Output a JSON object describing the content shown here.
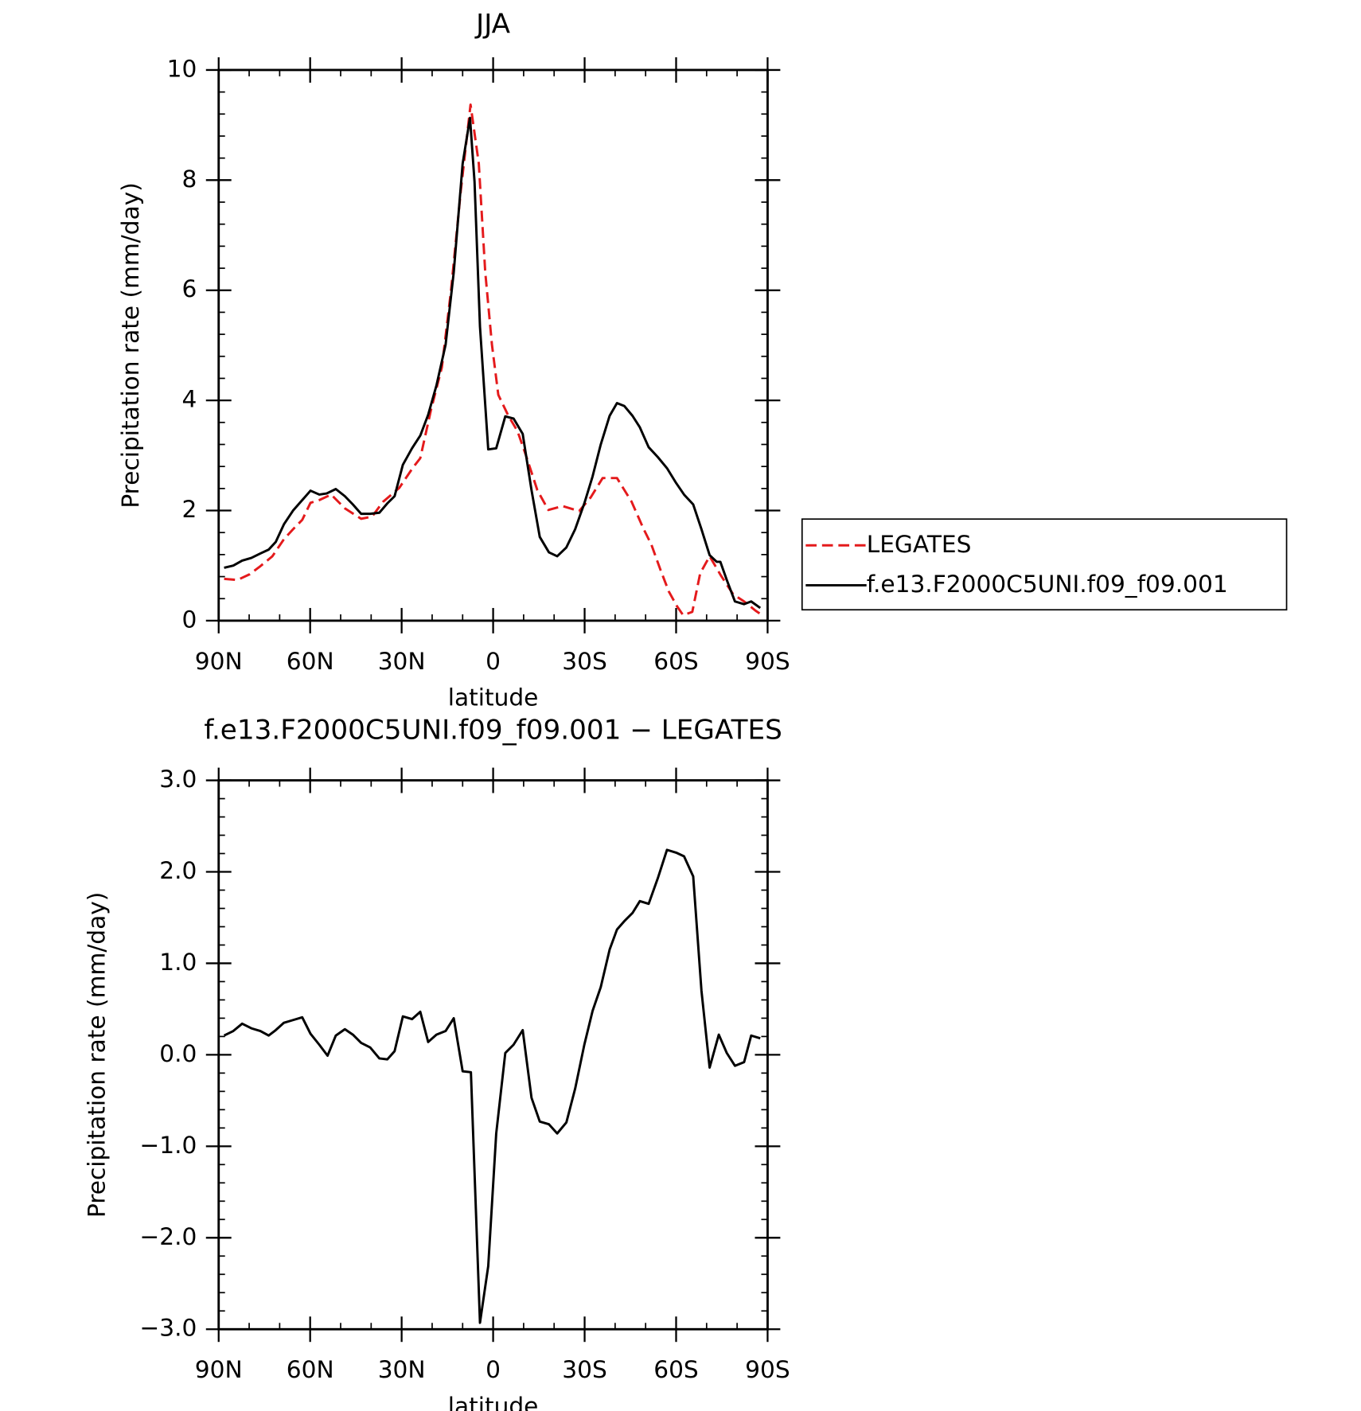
{
  "chart_data": [
    {
      "type": "line",
      "title": "JJA",
      "xlabel": "latitude",
      "ylabel": "Precipitation rate (mm/day)",
      "xlim": [
        90,
        -90
      ],
      "xticks": [
        {
          "value": 90,
          "label": "90N"
        },
        {
          "value": 60,
          "label": "60N"
        },
        {
          "value": 30,
          "label": "30N"
        },
        0,
        {
          "value": -30,
          "label": "30S"
        },
        {
          "value": -60,
          "label": "60S"
        },
        {
          "value": -90,
          "label": "90S"
        }
      ],
      "ylim": [
        0,
        10
      ],
      "yticks": [
        0,
        2,
        4,
        6,
        8,
        10
      ],
      "legend": "outside right",
      "series": [
        {
          "name": "LEGATES",
          "color": "#e41a1c",
          "style": "dashed",
          "x": [
            88.2,
            83.8,
            79.9,
            76.3,
            72.4,
            68.6,
            65.6,
            62.6,
            59.9,
            57.0,
            53.1,
            48.6,
            43.3,
            39.7,
            36.1,
            30.8,
            26.3,
            23.9,
            20.4,
            16.8,
            13.8,
            10.6,
            7.4,
            4.7,
            2.6,
            0.4,
            -1.7,
            -5.0,
            -8.0,
            -10.9,
            -14.5,
            -18.1,
            -22.8,
            -28.2,
            -32.0,
            -35.9,
            -40.6,
            -45.4,
            -49.2,
            -51.9,
            -54.9,
            -57.6,
            -60.3,
            -62.3,
            -65.3,
            -67.9,
            -71.0,
            -74.8,
            -78.7,
            -82.3,
            -86.1,
            -88.2
          ],
          "values": [
            0.76,
            0.74,
            0.84,
            0.99,
            1.17,
            1.48,
            1.66,
            1.83,
            2.14,
            2.19,
            2.29,
            2.04,
            1.85,
            1.89,
            2.16,
            2.41,
            2.78,
            2.95,
            3.82,
            4.6,
            6.0,
            7.81,
            9.37,
            8.3,
            6.33,
            5.01,
            4.1,
            3.72,
            3.44,
            2.98,
            2.37,
            2.01,
            2.08,
            1.99,
            2.24,
            2.59,
            2.59,
            2.16,
            1.68,
            1.38,
            0.92,
            0.53,
            0.26,
            0.1,
            0.16,
            0.86,
            1.17,
            0.81,
            0.48,
            0.35,
            0.18,
            0.1
          ]
        },
        {
          "name": "f.e13.F2000C5UNI.f09_f09.001",
          "color": "#000000",
          "style": "solid",
          "x": [
            88.2,
            85.2,
            82.3,
            79.3,
            76.3,
            73.6,
            71.3,
            68.6,
            65.6,
            62.6,
            59.9,
            57.0,
            54.6,
            51.6,
            48.6,
            46.0,
            43.3,
            40.3,
            37.3,
            34.7,
            32.3,
            29.6,
            26.6,
            23.9,
            21.3,
            18.6,
            15.6,
            12.9,
            10.0,
            7.6,
            6.1,
            4.3,
            1.6,
            -1.0,
            -4.0,
            -6.7,
            -9.7,
            -12.6,
            -15.3,
            -18.3,
            -21.0,
            -24.0,
            -26.9,
            -29.9,
            -32.6,
            -35.3,
            -38.2,
            -40.6,
            -43.0,
            -45.7,
            -48.1,
            -51.0,
            -54.0,
            -57.0,
            -60.0,
            -62.6,
            -65.6,
            -68.3,
            -71.0,
            -73.3,
            -74.5,
            -76.6,
            -79.3,
            -82.3,
            -84.6,
            -87.6
          ],
          "values": [
            0.96,
            1.0,
            1.09,
            1.14,
            1.22,
            1.29,
            1.43,
            1.75,
            2.0,
            2.19,
            2.36,
            2.29,
            2.31,
            2.39,
            2.26,
            2.11,
            1.94,
            1.94,
            1.96,
            2.13,
            2.26,
            2.83,
            3.13,
            3.36,
            3.74,
            4.27,
            5.01,
            6.33,
            8.3,
            9.13,
            7.97,
            5.34,
            3.11,
            3.13,
            3.71,
            3.67,
            3.39,
            2.37,
            1.52,
            1.24,
            1.17,
            1.33,
            1.66,
            2.13,
            2.62,
            3.2,
            3.72,
            3.95,
            3.9,
            3.72,
            3.51,
            3.15,
            2.97,
            2.77,
            2.5,
            2.29,
            2.11,
            1.66,
            1.19,
            1.07,
            1.07,
            0.74,
            0.35,
            0.3,
            0.35,
            0.23
          ]
        }
      ]
    },
    {
      "type": "line",
      "title": "f.e13.F2000C5UNI.f09_f09.001 − LEGATES",
      "xlabel": "latitude",
      "ylabel": "Precipitation rate (mm/day)",
      "xlim": [
        90,
        -90
      ],
      "xticks": [
        {
          "value": 90,
          "label": "90N"
        },
        {
          "value": 60,
          "label": "60N"
        },
        {
          "value": 30,
          "label": "30N"
        },
        0,
        {
          "value": -30,
          "label": "30S"
        },
        {
          "value": -60,
          "label": "60S"
        },
        {
          "value": -90,
          "label": "90S"
        }
      ],
      "ylim": [
        -3,
        3
      ],
      "yticks": [
        {
          "value": -3,
          "label": "−3.0"
        },
        {
          "value": -2,
          "label": "−2.0"
        },
        {
          "value": -1,
          "label": "−1.0"
        },
        {
          "value": 0,
          "label": "0.0"
        },
        {
          "value": 1,
          "label": "1.0"
        },
        {
          "value": 2,
          "label": "2.0"
        },
        {
          "value": 3,
          "label": "3.0"
        }
      ],
      "series": [
        {
          "color": "#000000",
          "style": "solid",
          "x": [
            88.2,
            85.2,
            82.3,
            79.3,
            76.3,
            73.6,
            71.3,
            68.6,
            65.6,
            62.6,
            59.9,
            57.0,
            54.3,
            51.6,
            48.6,
            46.0,
            43.3,
            40.3,
            37.3,
            34.7,
            32.3,
            29.6,
            26.6,
            23.9,
            21.3,
            18.6,
            15.6,
            12.9,
            10.0,
            7.3,
            4.3,
            1.6,
            -1.0,
            -4.0,
            -6.7,
            -9.7,
            -12.6,
            -15.3,
            -18.3,
            -21.0,
            -24.0,
            -26.9,
            -29.9,
            -32.6,
            -35.3,
            -38.2,
            -40.6,
            -43.0,
            -45.7,
            -48.1,
            -51.0,
            -54.0,
            -57.0,
            -60.0,
            -62.6,
            -65.6,
            -68.3,
            -71.0,
            -74.0,
            -76.6,
            -79.3,
            -82.3,
            -84.6,
            -87.6
          ],
          "values": [
            0.21,
            0.26,
            0.34,
            0.29,
            0.26,
            0.21,
            0.27,
            0.35,
            0.38,
            0.41,
            0.23,
            0.11,
            -0.01,
            0.21,
            0.28,
            0.22,
            0.13,
            0.08,
            -0.04,
            -0.05,
            0.04,
            0.42,
            0.39,
            0.47,
            0.14,
            0.22,
            0.26,
            0.4,
            -0.18,
            -0.19,
            -2.93,
            -2.31,
            -0.86,
            0.02,
            0.11,
            0.27,
            -0.47,
            -0.73,
            -0.76,
            -0.86,
            -0.74,
            -0.37,
            0.11,
            0.48,
            0.74,
            1.15,
            1.37,
            1.46,
            1.55,
            1.68,
            1.65,
            1.93,
            2.24,
            2.21,
            2.17,
            1.95,
            0.7,
            -0.14,
            0.22,
            0.02,
            -0.12,
            -0.08,
            0.21,
            0.18
          ]
        }
      ]
    }
  ]
}
